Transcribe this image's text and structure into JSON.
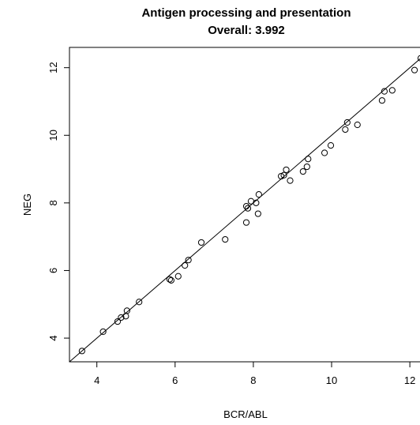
{
  "chart_data": {
    "type": "scatter",
    "title": "Antigen processing and presentation",
    "subtitle": "Overall: 3.992",
    "xlabel": "BCR/ABL",
    "ylabel": "NEG",
    "xlim": [
      3.3,
      12.3
    ],
    "ylim": [
      3.3,
      12.6
    ],
    "xticks": [
      4,
      6,
      8,
      10,
      12
    ],
    "yticks": [
      4,
      6,
      8,
      10,
      12
    ],
    "grid": false,
    "reference_line": {
      "slope": 1,
      "intercept": 0
    },
    "points": [
      {
        "x": 3.62,
        "y": 3.62
      },
      {
        "x": 4.16,
        "y": 4.19
      },
      {
        "x": 4.53,
        "y": 4.49
      },
      {
        "x": 4.62,
        "y": 4.61
      },
      {
        "x": 4.74,
        "y": 4.65
      },
      {
        "x": 4.77,
        "y": 4.81
      },
      {
        "x": 5.08,
        "y": 5.07
      },
      {
        "x": 5.86,
        "y": 5.74
      },
      {
        "x": 5.9,
        "y": 5.71
      },
      {
        "x": 6.08,
        "y": 5.83
      },
      {
        "x": 6.25,
        "y": 6.15
      },
      {
        "x": 6.34,
        "y": 6.31
      },
      {
        "x": 6.67,
        "y": 6.83
      },
      {
        "x": 7.28,
        "y": 6.92
      },
      {
        "x": 7.82,
        "y": 7.42
      },
      {
        "x": 7.82,
        "y": 7.9
      },
      {
        "x": 7.86,
        "y": 7.84
      },
      {
        "x": 7.94,
        "y": 8.05
      },
      {
        "x": 8.07,
        "y": 8.0
      },
      {
        "x": 8.12,
        "y": 7.68
      },
      {
        "x": 8.14,
        "y": 8.25
      },
      {
        "x": 8.71,
        "y": 8.79
      },
      {
        "x": 8.78,
        "y": 8.82
      },
      {
        "x": 8.84,
        "y": 8.98
      },
      {
        "x": 8.94,
        "y": 8.66
      },
      {
        "x": 9.27,
        "y": 8.93
      },
      {
        "x": 9.37,
        "y": 9.07
      },
      {
        "x": 9.4,
        "y": 9.3
      },
      {
        "x": 9.82,
        "y": 9.48
      },
      {
        "x": 9.98,
        "y": 9.7
      },
      {
        "x": 10.35,
        "y": 10.17
      },
      {
        "x": 10.4,
        "y": 10.38
      },
      {
        "x": 10.66,
        "y": 10.31
      },
      {
        "x": 11.29,
        "y": 11.03
      },
      {
        "x": 11.35,
        "y": 11.3
      },
      {
        "x": 11.55,
        "y": 11.33
      },
      {
        "x": 12.12,
        "y": 11.93
      },
      {
        "x": 12.28,
        "y": 12.28
      }
    ]
  }
}
